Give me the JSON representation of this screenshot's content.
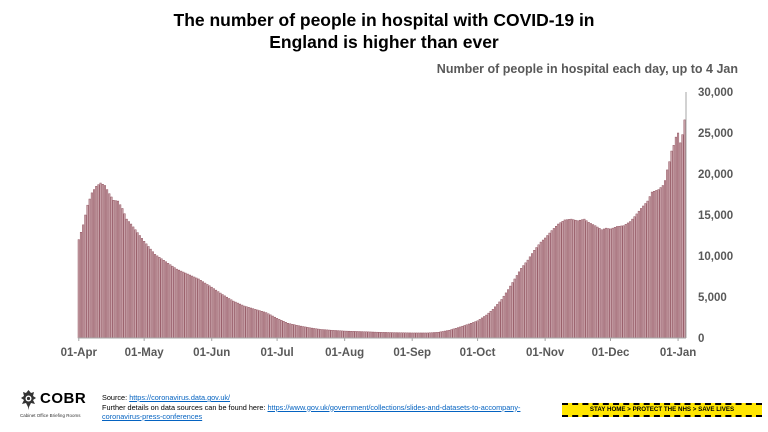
{
  "title_line1": "The number of people in hospital with COVID-19 in",
  "title_line2": "England is higher than ever",
  "subtitle": "Number of people in hospital each day, up to 4 Jan",
  "colors": {
    "bar": "#c8a2a9",
    "bar_edge": "#8c4a57",
    "axis": "#a6a6a6",
    "tick_text": "#595959"
  },
  "chart_data": {
    "type": "bar",
    "title": "The number of people in hospital with COVID-19 in England is higher than ever",
    "ylabel": "Number of people in hospital each day, up to 4 Jan",
    "xlabel": "",
    "ylim": [
      0,
      30000
    ],
    "y_ticks": [
      0,
      5000,
      10000,
      15000,
      20000,
      25000,
      30000
    ],
    "y_tick_labels": [
      "0",
      "5,000",
      "10,000",
      "15,000",
      "20,000",
      "25,000",
      "30,000"
    ],
    "x_tick_labels": [
      "01-Apr",
      "01-May",
      "01-Jun",
      "01-Jul",
      "01-Aug",
      "01-Sep",
      "01-Oct",
      "01-Nov",
      "01-Dec",
      "01-Jan"
    ],
    "x_tick_day_index": [
      0,
      30,
      61,
      91,
      122,
      153,
      183,
      214,
      244,
      275
    ],
    "first_day": "01-Apr",
    "last_day": "04-Jan",
    "anchors": [
      [
        0,
        12000
      ],
      [
        2,
        13800
      ],
      [
        4,
        16200
      ],
      [
        6,
        17700
      ],
      [
        8,
        18500
      ],
      [
        10,
        18900
      ],
      [
        12,
        18600
      ],
      [
        14,
        17600
      ],
      [
        16,
        16800
      ],
      [
        18,
        16700
      ],
      [
        20,
        15800
      ],
      [
        22,
        14500
      ],
      [
        24,
        13900
      ],
      [
        26,
        13200
      ],
      [
        28,
        12500
      ],
      [
        30,
        11800
      ],
      [
        35,
        10200
      ],
      [
        40,
        9300
      ],
      [
        45,
        8400
      ],
      [
        50,
        7800
      ],
      [
        55,
        7200
      ],
      [
        61,
        6200
      ],
      [
        66,
        5300
      ],
      [
        71,
        4500
      ],
      [
        76,
        3900
      ],
      [
        81,
        3500
      ],
      [
        86,
        3100
      ],
      [
        91,
        2400
      ],
      [
        96,
        1800
      ],
      [
        101,
        1500
      ],
      [
        106,
        1250
      ],
      [
        111,
        1050
      ],
      [
        116,
        950
      ],
      [
        122,
        850
      ],
      [
        130,
        780
      ],
      [
        138,
        700
      ],
      [
        146,
        650
      ],
      [
        153,
        620
      ],
      [
        160,
        620
      ],
      [
        165,
        700
      ],
      [
        170,
        950
      ],
      [
        175,
        1350
      ],
      [
        180,
        1800
      ],
      [
        183,
        2100
      ],
      [
        187,
        2800
      ],
      [
        190,
        3500
      ],
      [
        194,
        4700
      ],
      [
        197,
        5900
      ],
      [
        200,
        7200
      ],
      [
        203,
        8500
      ],
      [
        206,
        9500
      ],
      [
        209,
        10700
      ],
      [
        212,
        11700
      ],
      [
        214,
        12200
      ],
      [
        217,
        13100
      ],
      [
        220,
        13900
      ],
      [
        223,
        14400
      ],
      [
        226,
        14500
      ],
      [
        229,
        14300
      ],
      [
        232,
        14500
      ],
      [
        234,
        14100
      ],
      [
        237,
        13700
      ],
      [
        240,
        13200
      ],
      [
        242,
        13400
      ],
      [
        244,
        13300
      ],
      [
        247,
        13600
      ],
      [
        250,
        13700
      ],
      [
        253,
        14200
      ],
      [
        255,
        14800
      ],
      [
        258,
        15800
      ],
      [
        261,
        16700
      ],
      [
        263,
        17800
      ],
      [
        266,
        18100
      ],
      [
        268,
        18600
      ],
      [
        269,
        19200
      ],
      [
        270,
        20500
      ],
      [
        271,
        21500
      ],
      [
        272,
        22800
      ],
      [
        273,
        23500
      ],
      [
        274,
        24500
      ],
      [
        275,
        25000
      ],
      [
        276,
        23800
      ],
      [
        277,
        24800
      ],
      [
        278,
        26600
      ]
    ]
  },
  "footer": {
    "logo_text": "COBR",
    "logo_subtext": "Cabinet Office Briefing Rooms",
    "source_label": "Source: ",
    "source_url": "https://coronavirus.data.gov.uk/",
    "further_label": "Further details on data sources can be found here: ",
    "further_url": "https://www.gov.uk/government/collections/slides-and-datasets-to-accompany-coronavirus-press-conferences",
    "banner_text": "STAY HOME > PROTECT THE NHS > SAVE LIVES"
  }
}
